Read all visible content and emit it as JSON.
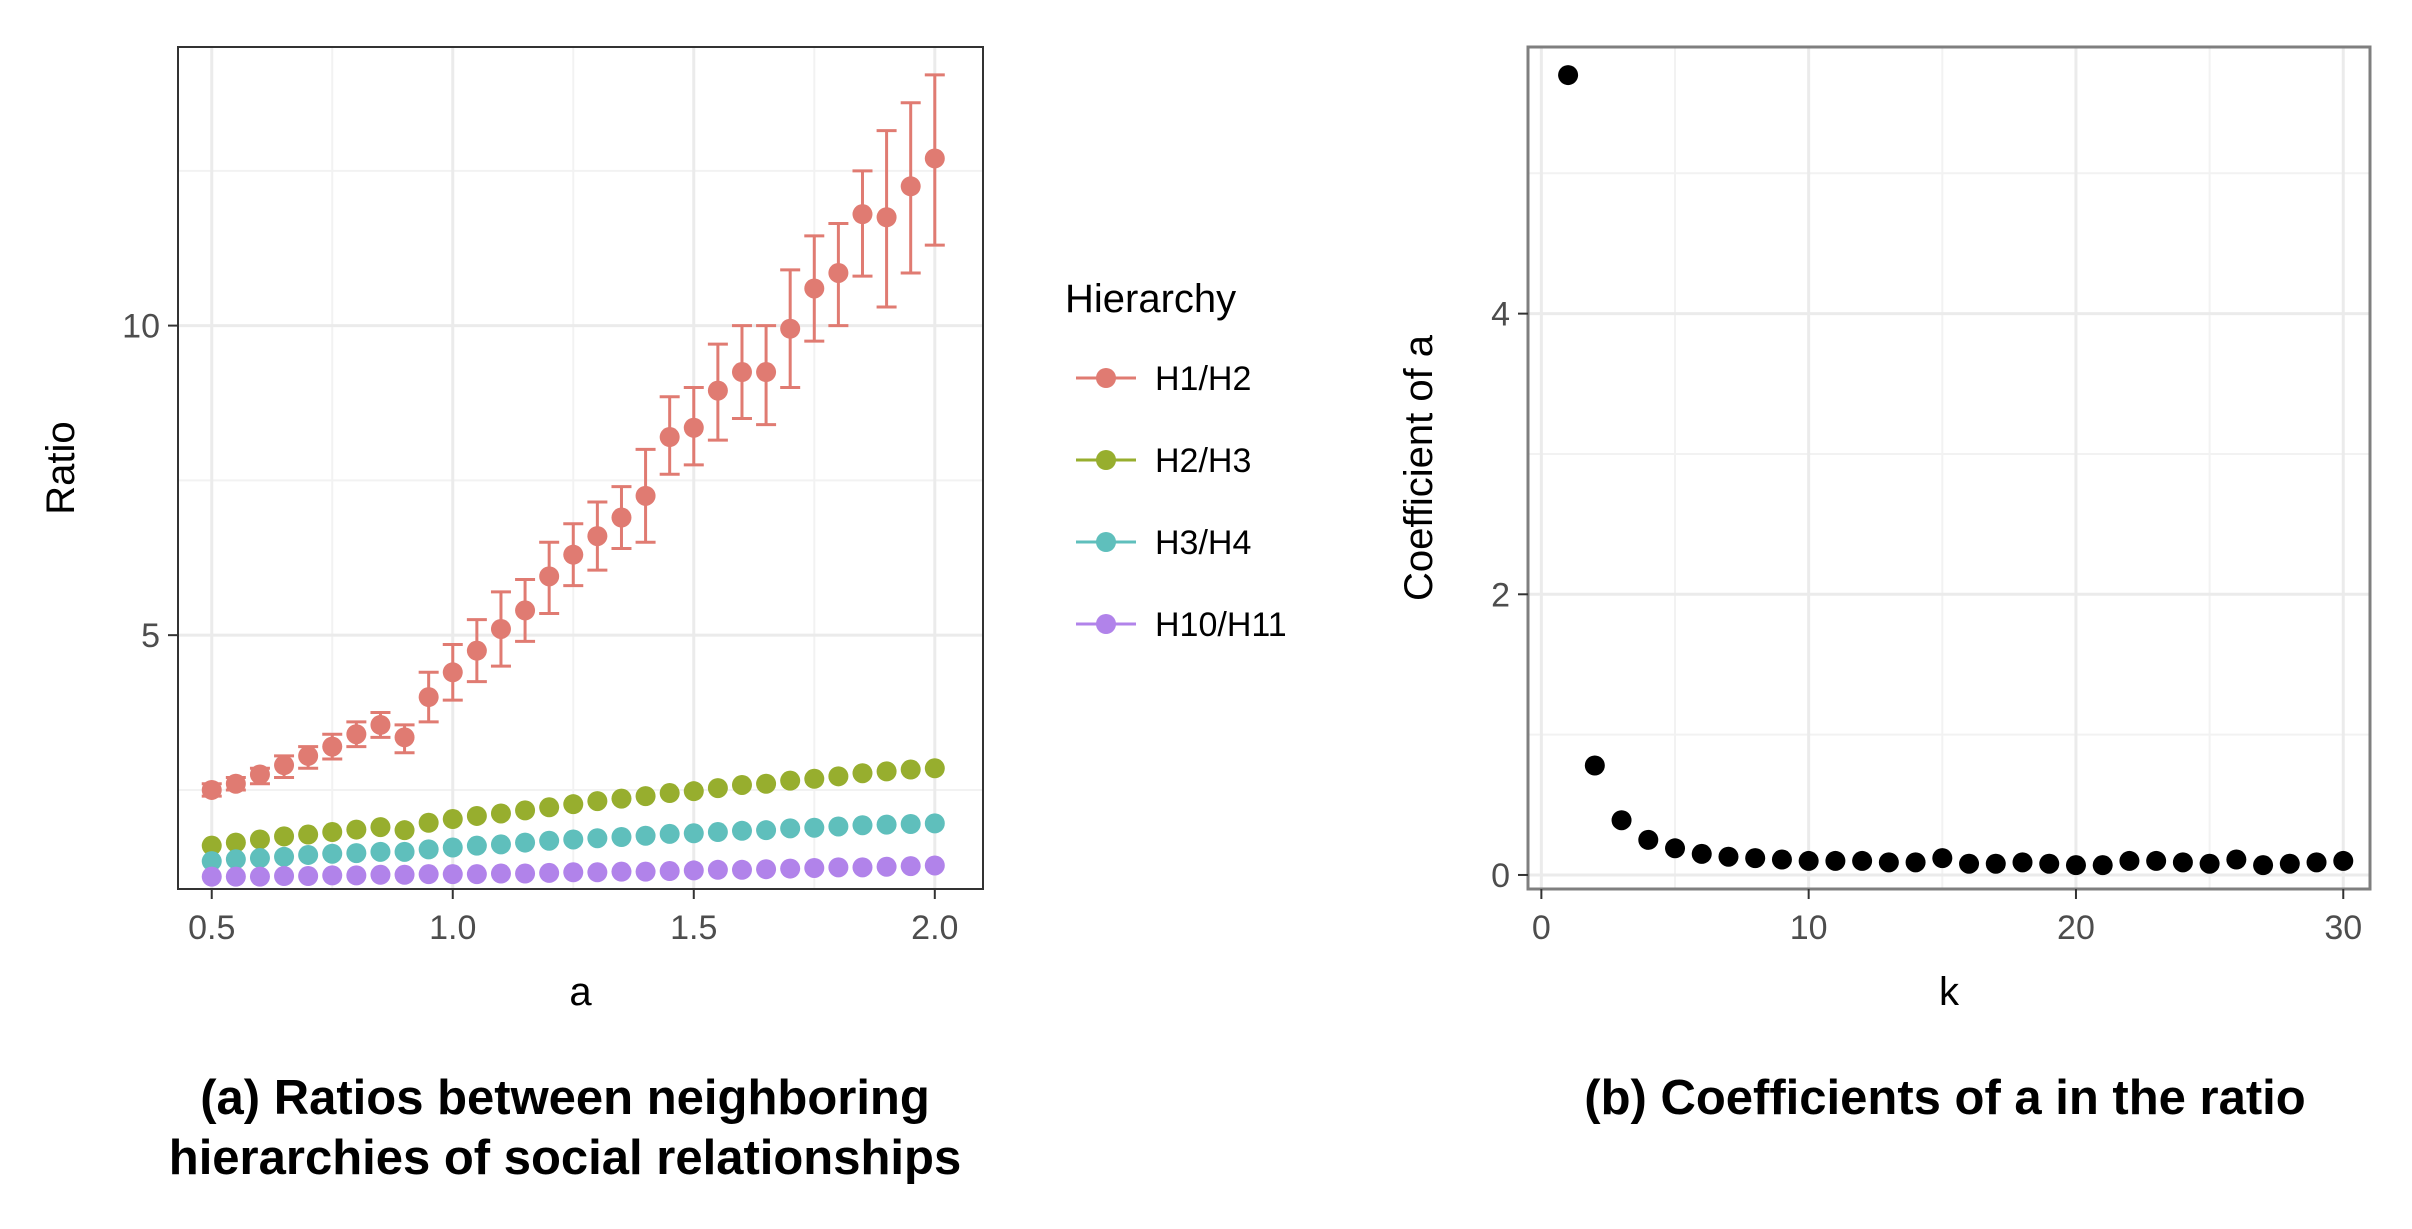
{
  "chart_data": [
    {
      "type": "scatter",
      "caption": "(a) Ratios between neighboring hierarchies of social relationships",
      "xlabel": "a",
      "ylabel": "Ratio",
      "xlim": [
        0.43,
        2.1
      ],
      "ylim": [
        0.9,
        14.5
      ],
      "xticks": [
        "0.5",
        "1.0",
        "1.5",
        "2.0"
      ],
      "yticks": [
        "5",
        "10"
      ],
      "grid": true,
      "legend": {
        "title": "Hierarchy",
        "placement": "right"
      },
      "x": [
        0.5,
        0.55,
        0.6,
        0.65,
        0.7,
        0.75,
        0.8,
        0.85,
        0.9,
        0.95,
        1.0,
        1.05,
        1.1,
        1.15,
        1.2,
        1.25,
        1.3,
        1.35,
        1.4,
        1.45,
        1.5,
        1.55,
        1.6,
        1.65,
        1.7,
        1.75,
        1.8,
        1.85,
        1.9,
        1.95,
        2.0
      ],
      "series": [
        {
          "name": "H1/H2",
          "color": "#e07b72",
          "values": [
            2.5,
            2.6,
            2.75,
            2.9,
            3.05,
            3.2,
            3.4,
            3.55,
            3.35,
            4.0,
            4.4,
            4.75,
            5.1,
            5.4,
            5.95,
            6.3,
            6.6,
            6.9,
            7.25,
            8.2,
            8.35,
            8.95,
            9.25,
            9.25,
            9.95,
            10.6,
            10.85,
            11.8,
            11.75,
            12.25,
            12.7
          ],
          "err_low": [
            2.4,
            2.5,
            2.6,
            2.7,
            2.85,
            3.0,
            3.2,
            3.35,
            3.1,
            3.6,
            3.95,
            4.25,
            4.5,
            4.9,
            5.35,
            5.8,
            6.05,
            6.4,
            6.5,
            7.6,
            7.75,
            8.15,
            8.5,
            8.4,
            9.0,
            9.75,
            10.0,
            10.8,
            10.3,
            10.85,
            11.3
          ],
          "err_high": [
            2.6,
            2.7,
            2.85,
            3.05,
            3.2,
            3.4,
            3.6,
            3.75,
            3.55,
            4.4,
            4.85,
            5.25,
            5.7,
            5.9,
            6.5,
            6.8,
            7.15,
            7.4,
            8.0,
            8.85,
            9.0,
            9.7,
            10.0,
            10.0,
            10.9,
            11.45,
            11.65,
            12.5,
            13.15,
            13.6,
            14.05
          ]
        },
        {
          "name": "H2/H3",
          "color": "#97ae2e",
          "values": [
            1.6,
            1.65,
            1.7,
            1.75,
            1.78,
            1.82,
            1.86,
            1.9,
            1.85,
            1.97,
            2.03,
            2.08,
            2.12,
            2.17,
            2.22,
            2.27,
            2.32,
            2.36,
            2.4,
            2.45,
            2.48,
            2.53,
            2.58,
            2.6,
            2.65,
            2.68,
            2.72,
            2.77,
            2.8,
            2.83,
            2.85
          ]
        },
        {
          "name": "H3/H4",
          "color": "#5fbfbc",
          "values": [
            1.35,
            1.38,
            1.4,
            1.42,
            1.45,
            1.47,
            1.48,
            1.5,
            1.5,
            1.54,
            1.57,
            1.6,
            1.62,
            1.65,
            1.68,
            1.7,
            1.72,
            1.74,
            1.76,
            1.79,
            1.8,
            1.82,
            1.84,
            1.85,
            1.88,
            1.89,
            1.91,
            1.93,
            1.94,
            1.95,
            1.96
          ]
        },
        {
          "name": "H10/H11",
          "color": "#b183ea",
          "values": [
            1.1,
            1.1,
            1.1,
            1.11,
            1.11,
            1.12,
            1.12,
            1.13,
            1.13,
            1.14,
            1.14,
            1.14,
            1.15,
            1.15,
            1.16,
            1.17,
            1.17,
            1.18,
            1.18,
            1.19,
            1.2,
            1.21,
            1.21,
            1.22,
            1.23,
            1.24,
            1.25,
            1.25,
            1.26,
            1.27,
            1.28
          ]
        }
      ]
    },
    {
      "type": "scatter",
      "caption": "(b) Coefficients of a in the ratio",
      "xlabel": "k",
      "ylabel": "Coefficient of a",
      "xlim": [
        -0.5,
        31
      ],
      "ylim": [
        -0.1,
        5.9
      ],
      "xticks": [
        "0",
        "10",
        "20",
        "30"
      ],
      "yticks": [
        "0",
        "2",
        "4"
      ],
      "grid": true,
      "x": [
        1,
        2,
        3,
        4,
        5,
        6,
        7,
        8,
        9,
        10,
        11,
        12,
        13,
        14,
        15,
        16,
        17,
        18,
        19,
        20,
        21,
        22,
        23,
        24,
        25,
        26,
        27,
        28,
        29,
        30
      ],
      "series": [
        {
          "color": "#000000",
          "values": [
            5.7,
            0.78,
            0.39,
            0.25,
            0.19,
            0.15,
            0.13,
            0.12,
            0.11,
            0.1,
            0.1,
            0.1,
            0.09,
            0.09,
            0.12,
            0.08,
            0.08,
            0.09,
            0.08,
            0.07,
            0.07,
            0.1,
            0.1,
            0.09,
            0.08,
            0.11,
            0.07,
            0.08,
            0.09,
            0.1
          ]
        }
      ]
    }
  ]
}
